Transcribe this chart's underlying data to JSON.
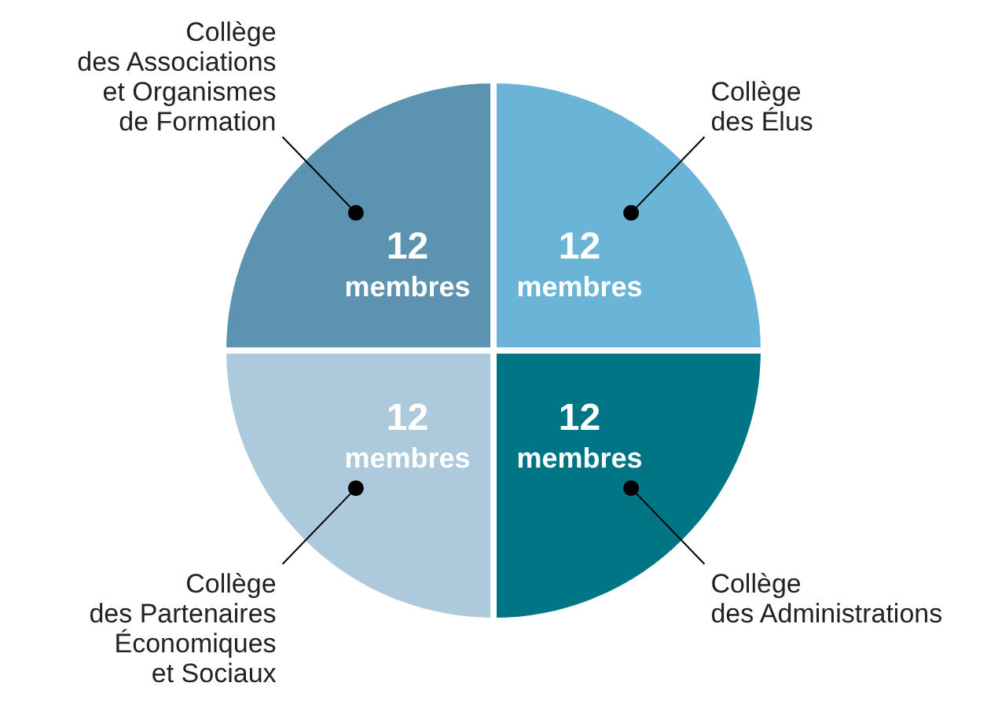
{
  "chart_data": {
    "type": "pie",
    "categories": [
      "Collège\ndes Élus",
      "Collège\ndes Administrations",
      "Collège\ndes Partenaires\nÉconomiques\net Sociaux",
      "Collège\ndes Associations\net Organismes\nde Formation"
    ],
    "values": [
      12,
      12,
      12,
      12
    ],
    "colors": [
      "#6ab4d8",
      "#007585",
      "#adc9dc",
      "#5b93b0"
    ],
    "value_labels": [
      "12\nmembres",
      "12\nmembres",
      "12\nmembres",
      "12\nmembres"
    ]
  }
}
